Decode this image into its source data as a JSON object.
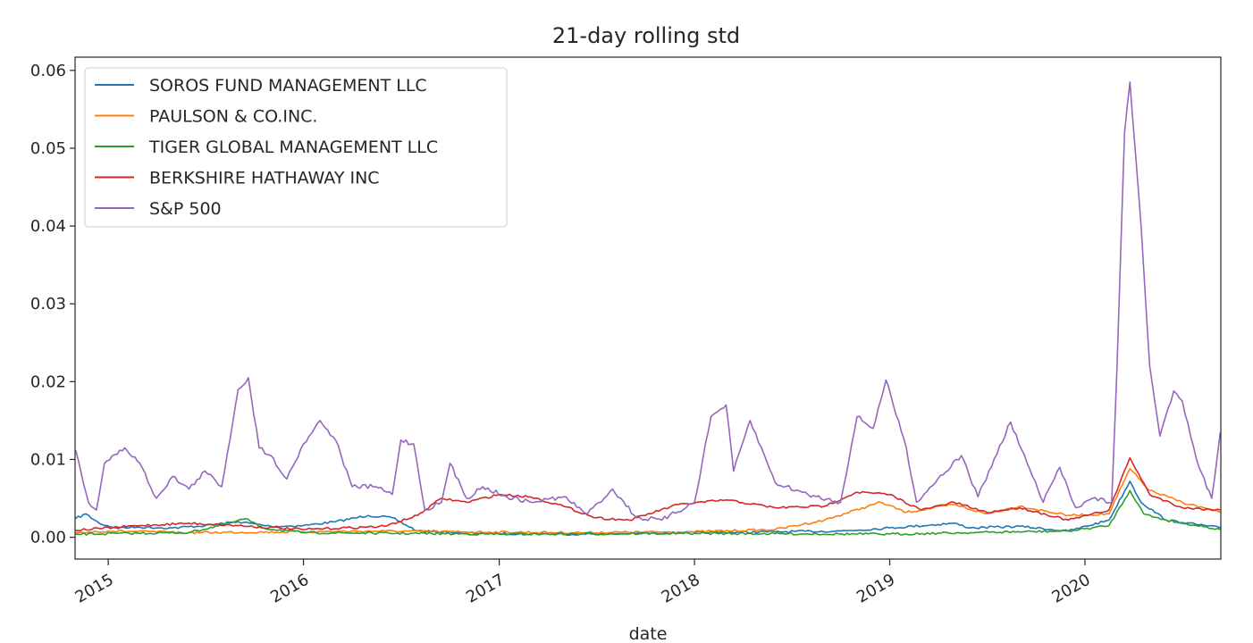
{
  "chart_data": {
    "type": "line",
    "title": "21-day rolling std",
    "xlabel": "date",
    "ylabel": "",
    "xlim": [
      "2014-10-31",
      "2020-09-11"
    ],
    "ylim": [
      -0.0028,
      0.0617
    ],
    "x_ticks": [
      "2015",
      "2016",
      "2017",
      "2018",
      "2019",
      "2020"
    ],
    "x_tick_dates": [
      "2015-01-01",
      "2016-01-01",
      "2017-01-01",
      "2018-01-01",
      "2019-01-01",
      "2020-01-01"
    ],
    "y_ticks": [
      "0.00",
      "0.01",
      "0.02",
      "0.03",
      "0.04",
      "0.05",
      "0.06"
    ],
    "y_tick_values": [
      0.0,
      0.01,
      0.02,
      0.03,
      0.04,
      0.05,
      0.06
    ],
    "grid": false,
    "legend_position": "upper-left",
    "series": [
      {
        "name": "SOROS FUND MANAGEMENT LLC",
        "color": "#1f77b4",
        "points": [
          [
            "2014-11-01",
            0.0024
          ],
          [
            "2014-11-20",
            0.003
          ],
          [
            "2014-12-15",
            0.0018
          ],
          [
            "2015-01-15",
            0.0012
          ],
          [
            "2015-03-01",
            0.0013
          ],
          [
            "2015-05-01",
            0.0012
          ],
          [
            "2015-07-01",
            0.0015
          ],
          [
            "2015-09-01",
            0.002
          ],
          [
            "2015-11-01",
            0.0014
          ],
          [
            "2016-01-01",
            0.0015
          ],
          [
            "2016-03-01",
            0.002
          ],
          [
            "2016-05-01",
            0.0028
          ],
          [
            "2016-06-15",
            0.0025
          ],
          [
            "2016-08-01",
            0.0008
          ],
          [
            "2016-12-01",
            0.0005
          ],
          [
            "2017-06-01",
            0.0004
          ],
          [
            "2018-01-01",
            0.0006
          ],
          [
            "2018-06-01",
            0.0007
          ],
          [
            "2018-10-01",
            0.0008
          ],
          [
            "2019-01-01",
            0.0012
          ],
          [
            "2019-05-01",
            0.0018
          ],
          [
            "2019-06-01",
            0.0012
          ],
          [
            "2019-09-01",
            0.0014
          ],
          [
            "2019-12-01",
            0.0008
          ],
          [
            "2020-02-15",
            0.0022
          ],
          [
            "2020-03-25",
            0.0072
          ],
          [
            "2020-04-15",
            0.0045
          ],
          [
            "2020-06-01",
            0.0022
          ],
          [
            "2020-09-10",
            0.0012
          ]
        ]
      },
      {
        "name": "PAULSON & CO.INC.",
        "color": "#ff7f0e",
        "points": [
          [
            "2014-11-01",
            0.0006
          ],
          [
            "2015-01-01",
            0.0008
          ],
          [
            "2015-06-01",
            0.0006
          ],
          [
            "2016-01-01",
            0.0007
          ],
          [
            "2016-06-01",
            0.0008
          ],
          [
            "2016-10-01",
            0.0007
          ],
          [
            "2017-06-01",
            0.0006
          ],
          [
            "2018-01-01",
            0.0007
          ],
          [
            "2018-06-01",
            0.001
          ],
          [
            "2018-09-01",
            0.0022
          ],
          [
            "2018-12-15",
            0.0045
          ],
          [
            "2019-02-01",
            0.0032
          ],
          [
            "2019-05-01",
            0.0042
          ],
          [
            "2019-07-01",
            0.003
          ],
          [
            "2019-09-01",
            0.004
          ],
          [
            "2019-12-01",
            0.0028
          ],
          [
            "2020-02-15",
            0.003
          ],
          [
            "2020-03-25",
            0.0088
          ],
          [
            "2020-05-01",
            0.006
          ],
          [
            "2020-07-01",
            0.0045
          ],
          [
            "2020-09-10",
            0.0032
          ]
        ]
      },
      {
        "name": "TIGER GLOBAL MANAGEMENT LLC",
        "color": "#2ca02c",
        "points": [
          [
            "2014-11-01",
            0.0004
          ],
          [
            "2015-06-01",
            0.0006
          ],
          [
            "2015-08-15",
            0.0018
          ],
          [
            "2015-09-15",
            0.0024
          ],
          [
            "2015-10-15",
            0.0012
          ],
          [
            "2016-01-01",
            0.0006
          ],
          [
            "2017-01-01",
            0.0004
          ],
          [
            "2018-01-01",
            0.0005
          ],
          [
            "2019-01-01",
            0.0004
          ],
          [
            "2019-06-01",
            0.0006
          ],
          [
            "2019-12-01",
            0.0008
          ],
          [
            "2020-02-15",
            0.0015
          ],
          [
            "2020-03-25",
            0.006
          ],
          [
            "2020-04-20",
            0.003
          ],
          [
            "2020-06-01",
            0.0022
          ],
          [
            "2020-09-10",
            0.001
          ]
        ]
      },
      {
        "name": "BERKSHIRE HATHAWAY INC",
        "color": "#d62728",
        "points": [
          [
            "2014-11-01",
            0.0009
          ],
          [
            "2015-03-01",
            0.0015
          ],
          [
            "2015-06-01",
            0.0018
          ],
          [
            "2015-09-01",
            0.0015
          ],
          [
            "2016-01-01",
            0.001
          ],
          [
            "2016-06-01",
            0.0014
          ],
          [
            "2016-08-01",
            0.0028
          ],
          [
            "2016-09-15",
            0.005
          ],
          [
            "2016-11-01",
            0.0045
          ],
          [
            "2017-01-01",
            0.0055
          ],
          [
            "2017-03-01",
            0.0052
          ],
          [
            "2017-05-01",
            0.004
          ],
          [
            "2017-07-01",
            0.0025
          ],
          [
            "2017-09-01",
            0.0022
          ],
          [
            "2017-12-01",
            0.0042
          ],
          [
            "2018-03-01",
            0.0048
          ],
          [
            "2018-06-01",
            0.0038
          ],
          [
            "2018-09-01",
            0.004
          ],
          [
            "2018-11-01",
            0.0058
          ],
          [
            "2019-01-01",
            0.0055
          ],
          [
            "2019-03-01",
            0.0035
          ],
          [
            "2019-05-01",
            0.0045
          ],
          [
            "2019-07-01",
            0.0032
          ],
          [
            "2019-09-01",
            0.0038
          ],
          [
            "2019-12-01",
            0.0022
          ],
          [
            "2020-02-15",
            0.0035
          ],
          [
            "2020-03-25",
            0.0102
          ],
          [
            "2020-05-01",
            0.0055
          ],
          [
            "2020-07-01",
            0.0038
          ],
          [
            "2020-09-10",
            0.0035
          ]
        ]
      },
      {
        "name": "S&P 500",
        "color": "#9467bd",
        "points": [
          [
            "2014-11-01",
            0.0112
          ],
          [
            "2014-11-25",
            0.0045
          ],
          [
            "2014-12-10",
            0.0035
          ],
          [
            "2014-12-25",
            0.0095
          ],
          [
            "2015-02-01",
            0.0115
          ],
          [
            "2015-03-01",
            0.0095
          ],
          [
            "2015-04-01",
            0.005
          ],
          [
            "2015-05-01",
            0.0078
          ],
          [
            "2015-06-01",
            0.0062
          ],
          [
            "2015-07-01",
            0.0085
          ],
          [
            "2015-08-01",
            0.0065
          ],
          [
            "2015-09-01",
            0.019
          ],
          [
            "2015-09-20",
            0.0205
          ],
          [
            "2015-10-10",
            0.0115
          ],
          [
            "2015-11-01",
            0.0105
          ],
          [
            "2015-12-01",
            0.0075
          ],
          [
            "2016-01-01",
            0.012
          ],
          [
            "2016-02-01",
            0.015
          ],
          [
            "2016-03-01",
            0.0125
          ],
          [
            "2016-04-01",
            0.0065
          ],
          [
            "2016-05-15",
            0.0065
          ],
          [
            "2016-06-15",
            0.0055
          ],
          [
            "2016-07-01",
            0.0125
          ],
          [
            "2016-07-25",
            0.012
          ],
          [
            "2016-08-15",
            0.0035
          ],
          [
            "2016-09-15",
            0.0045
          ],
          [
            "2016-10-01",
            0.0095
          ],
          [
            "2016-11-01",
            0.005
          ],
          [
            "2016-12-01",
            0.0065
          ],
          [
            "2017-01-15",
            0.0052
          ],
          [
            "2017-03-01",
            0.0045
          ],
          [
            "2017-05-01",
            0.0052
          ],
          [
            "2017-06-15",
            0.003
          ],
          [
            "2017-08-01",
            0.0062
          ],
          [
            "2017-09-15",
            0.0025
          ],
          [
            "2017-11-01",
            0.0022
          ],
          [
            "2018-01-01",
            0.0045
          ],
          [
            "2018-02-01",
            0.0155
          ],
          [
            "2018-03-01",
            0.017
          ],
          [
            "2018-03-15",
            0.0085
          ],
          [
            "2018-04-15",
            0.015
          ],
          [
            "2018-06-01",
            0.007
          ],
          [
            "2018-08-01",
            0.0055
          ],
          [
            "2018-10-01",
            0.0045
          ],
          [
            "2018-11-01",
            0.0155
          ],
          [
            "2018-12-01",
            0.014
          ],
          [
            "2018-12-25",
            0.0202
          ],
          [
            "2019-02-01",
            0.0115
          ],
          [
            "2019-02-20",
            0.0045
          ],
          [
            "2019-04-01",
            0.0075
          ],
          [
            "2019-05-15",
            0.0105
          ],
          [
            "2019-06-15",
            0.0052
          ],
          [
            "2019-08-15",
            0.0148
          ],
          [
            "2019-09-15",
            0.0095
          ],
          [
            "2019-10-15",
            0.0045
          ],
          [
            "2019-11-15",
            0.009
          ],
          [
            "2019-12-15",
            0.0038
          ],
          [
            "2020-01-15",
            0.005
          ],
          [
            "2020-02-20",
            0.0045
          ],
          [
            "2020-03-01",
            0.022
          ],
          [
            "2020-03-15",
            0.052
          ],
          [
            "2020-03-25",
            0.0585
          ],
          [
            "2020-04-15",
            0.04
          ],
          [
            "2020-05-01",
            0.022
          ],
          [
            "2020-05-20",
            0.013
          ],
          [
            "2020-06-15",
            0.0188
          ],
          [
            "2020-07-01",
            0.0175
          ],
          [
            "2020-08-01",
            0.009
          ],
          [
            "2020-08-25",
            0.005
          ],
          [
            "2020-09-10",
            0.0135
          ]
        ]
      }
    ]
  }
}
